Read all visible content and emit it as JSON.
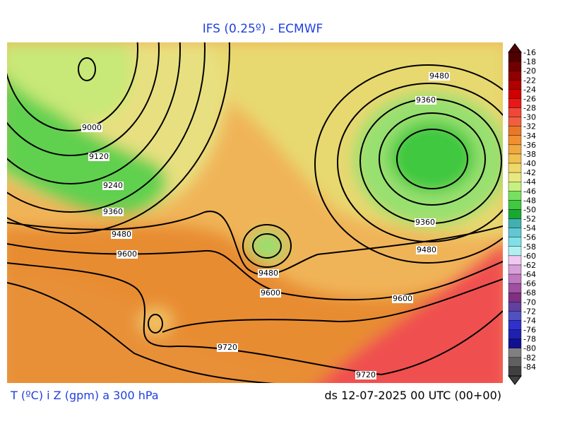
{
  "header": {
    "title": "IFS (0.25º) - ECMWF"
  },
  "footer": {
    "left": "T (ºC) i Z (gpm) a 300 hPa",
    "right": "ds 12-07-2025 00 UTC (00+00)"
  },
  "contour_labels": [
    "9000",
    "9120",
    "9240",
    "9360",
    "9480",
    "9600",
    "9480",
    "9600",
    "9720",
    "9720",
    "9600",
    "9480",
    "9360",
    "9360",
    "9480"
  ],
  "colorbar": {
    "labels": [
      "-16",
      "-18",
      "-20",
      "-22",
      "-24",
      "-26",
      "-28",
      "-30",
      "-32",
      "-34",
      "-36",
      "-38",
      "-40",
      "-42",
      "-44",
      "-46",
      "-48",
      "-50",
      "-52",
      "-54",
      "-56",
      "-58",
      "-60",
      "-62",
      "-64",
      "-66",
      "-68",
      "-70",
      "-72",
      "-74",
      "-76",
      "-78",
      "-80",
      "-82",
      "-84"
    ],
    "colors": [
      "#500000",
      "#700000",
      "#900000",
      "#b00000",
      "#d00000",
      "#e81818",
      "#f04838",
      "#f06040",
      "#e87828",
      "#f09030",
      "#f0a840",
      "#f0c050",
      "#f0d868",
      "#e8e880",
      "#c8f080",
      "#78e060",
      "#40c840",
      "#18a830",
      "#40b0b0",
      "#60c8d0",
      "#80e0e8",
      "#b0f0f0",
      "#f0c8f0",
      "#d8a0d8",
      "#c078c0",
      "#a050a0",
      "#803080",
      "#6040a0",
      "#5050c0",
      "#3030d0",
      "#2020b0",
      "#101090",
      "#808080",
      "#606060",
      "#404040"
    ]
  }
}
